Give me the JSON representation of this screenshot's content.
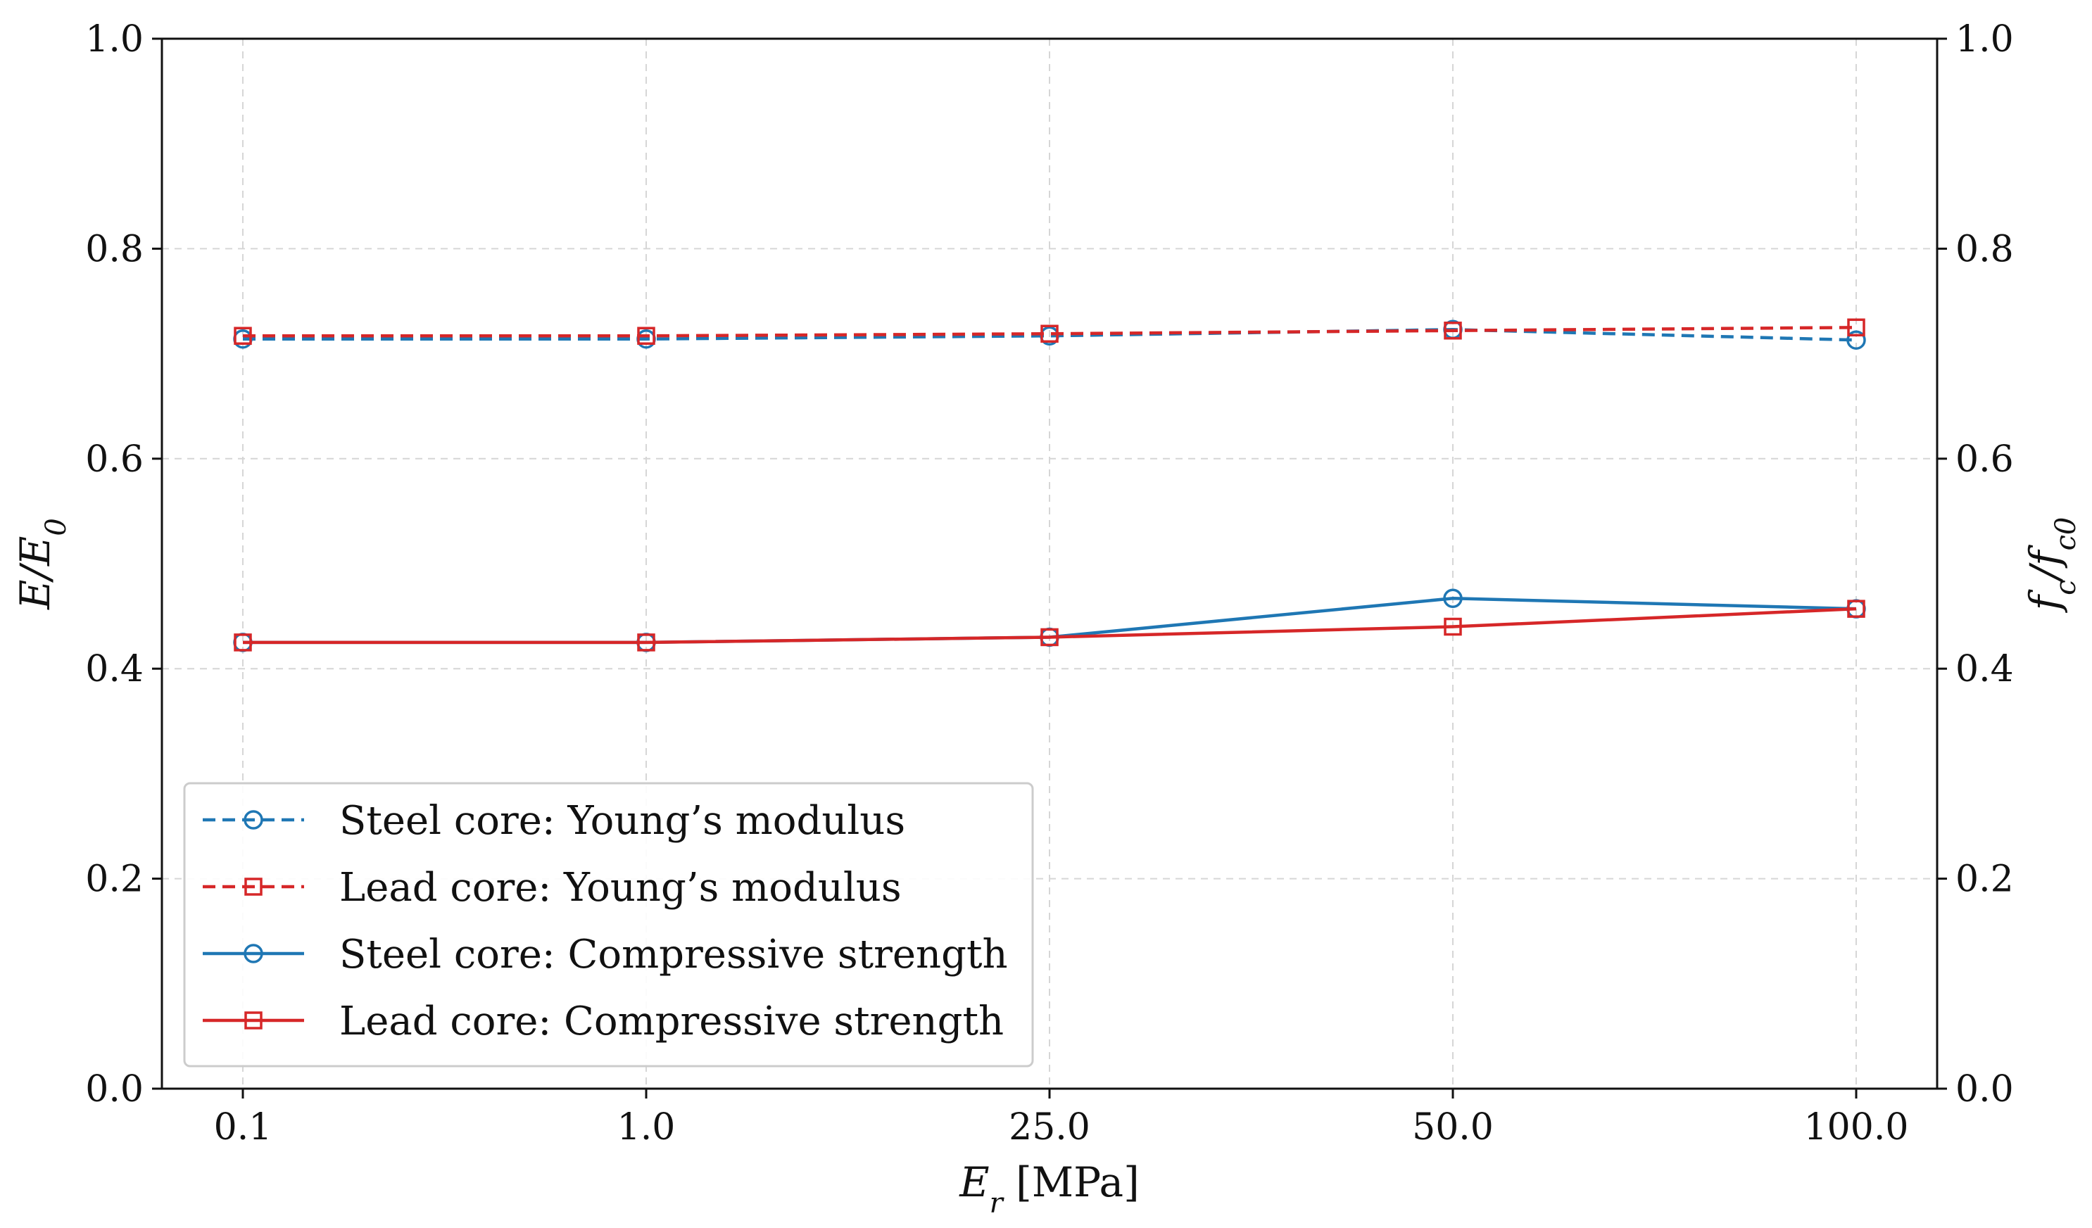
{
  "chart_data": {
    "type": "line",
    "xlabel": "E_r [MPa]",
    "ylabel": "E/E_0",
    "ylabel_right": "f_c/f_c0",
    "categories": [
      "0.1",
      "1.0",
      "25.0",
      "50.0",
      "100.0"
    ],
    "ylim": [
      0.0,
      1.0
    ],
    "ylim_right": [
      0.0,
      1.0
    ],
    "yticks": [
      "0.0",
      "0.2",
      "0.4",
      "0.6",
      "0.8",
      "1.0"
    ],
    "grid": true,
    "legend_position": "bottom-left",
    "series": [
      {
        "name": "Steel core: Young’s modulus",
        "values": [
          0.714,
          0.714,
          0.717,
          0.723,
          0.713
        ],
        "color": "#1f77b4",
        "line_style": "dashed",
        "marker": "circle"
      },
      {
        "name": "Lead core: Young’s modulus",
        "values": [
          0.717,
          0.717,
          0.719,
          0.722,
          0.725
        ],
        "color": "#d62728",
        "line_style": "dashed",
        "marker": "square"
      },
      {
        "name": "Steel core: Compressive strength",
        "values": [
          0.425,
          0.425,
          0.43,
          0.467,
          0.457
        ],
        "color": "#1f77b4",
        "line_style": "solid",
        "marker": "circle"
      },
      {
        "name": "Lead core: Compressive strength",
        "values": [
          0.425,
          0.425,
          0.43,
          0.44,
          0.457
        ],
        "color": "#d62728",
        "line_style": "solid",
        "marker": "square"
      }
    ]
  }
}
